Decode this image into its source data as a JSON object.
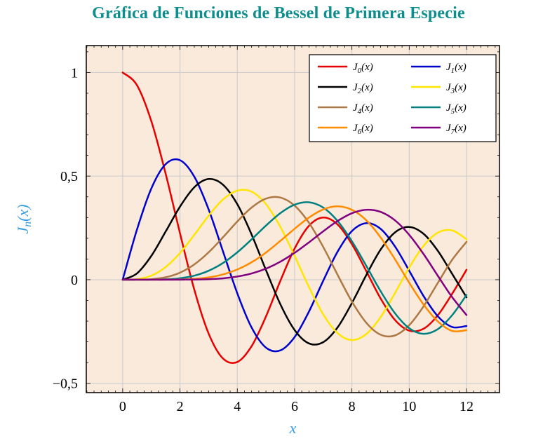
{
  "title": "Gráfica de Funciones de Bessel de Primera Especie",
  "title_color": "#0e8d8d",
  "chart_data": {
    "type": "line",
    "title": "Gráfica de Funciones de Bessel de Primera Especie",
    "xlabel": "x",
    "ylabel": "J_n(x)",
    "axis_label_color": "#3a9ede",
    "plot_bg": "#faeadc",
    "grid": true,
    "grid_color": "#c9c9c9",
    "legend_position": "top-right",
    "xlim": [
      -1.27,
      13.15
    ],
    "ylim": [
      -0.545,
      1.13
    ],
    "x_ticks": [
      {
        "v": 0,
        "label": "0"
      },
      {
        "v": 2,
        "label": "2"
      },
      {
        "v": 4,
        "label": "4"
      },
      {
        "v": 6,
        "label": "6"
      },
      {
        "v": 8,
        "label": "8"
      },
      {
        "v": 10,
        "label": "10"
      },
      {
        "v": 12,
        "label": "12"
      }
    ],
    "y_ticks": [
      {
        "v": 1,
        "label": "1"
      },
      {
        "v": 0.5,
        "label": "0,5"
      },
      {
        "v": 0,
        "label": "0"
      },
      {
        "v": -0.5,
        "label": "−0,5"
      }
    ],
    "x": [
      0,
      0.5,
      1,
      1.5,
      2,
      2.5,
      3,
      3.5,
      4,
      4.5,
      5,
      5.5,
      6,
      6.5,
      7,
      7.5,
      8,
      8.5,
      9,
      9.5,
      10,
      10.5,
      11,
      11.5,
      12
    ],
    "series": [
      {
        "name": "J_0(x)",
        "color": "#e60000",
        "values": [
          1,
          0.9385,
          0.7652,
          0.5118,
          0.2239,
          -0.0484,
          -0.2601,
          -0.3801,
          -0.3971,
          -0.3205,
          -0.1776,
          -0.0068,
          0.1506,
          0.2601,
          0.3001,
          0.2663,
          0.1717,
          0.0419,
          -0.0903,
          -0.1939,
          -0.2459,
          -0.2366,
          -0.1712,
          -0.0677,
          0.0477
        ]
      },
      {
        "name": "J_1(x)",
        "color": "#0000cd",
        "values": [
          0,
          0.2423,
          0.4401,
          0.5579,
          0.5767,
          0.4971,
          0.3391,
          0.1374,
          -0.066,
          -0.2311,
          -0.3276,
          -0.3414,
          -0.2767,
          -0.1538,
          -0.0047,
          0.1352,
          0.2346,
          0.2731,
          0.2453,
          0.1613,
          0.0435,
          -0.0789,
          -0.1768,
          -0.2284,
          -0.2234
        ]
      },
      {
        "name": "J_2(x)",
        "color": "#000000",
        "values": [
          0,
          0.0306,
          0.1149,
          0.2321,
          0.3528,
          0.4461,
          0.4861,
          0.4586,
          0.3641,
          0.2178,
          0.0466,
          -0.1173,
          -0.2429,
          -0.3074,
          -0.3014,
          -0.2303,
          -0.113,
          0.0223,
          0.1448,
          0.2279,
          0.2546,
          0.2216,
          0.139,
          0.0279,
          -0.0849
        ]
      },
      {
        "name": "J_3(x)",
        "color": "#ffe600",
        "values": [
          0,
          0.0026,
          0.0196,
          0.061,
          0.1289,
          0.2166,
          0.3091,
          0.3868,
          0.4302,
          0.4247,
          0.3648,
          0.2561,
          0.1148,
          -0.0353,
          -0.1676,
          -0.2581,
          -0.2911,
          -0.2626,
          -0.1809,
          -0.0653,
          0.0584,
          0.1633,
          0.2273,
          0.2381,
          0.1951
        ]
      },
      {
        "name": "J_4(x)",
        "color": "#ad7843",
        "values": [
          0,
          0.0002,
          0.0025,
          0.0118,
          0.034,
          0.0738,
          0.132,
          0.2044,
          0.2811,
          0.3484,
          0.3912,
          0.3967,
          0.3576,
          0.2748,
          0.1578,
          0.0238,
          -0.1054,
          -0.2077,
          -0.2655,
          -0.2691,
          -0.2196,
          -0.1283,
          -0.015,
          0.0963,
          0.1825
        ]
      },
      {
        "name": "J_5(x)",
        "color": "#008080",
        "values": [
          0,
          0,
          0.0002,
          0.0018,
          0.007,
          0.0195,
          0.043,
          0.0804,
          0.1321,
          0.1947,
          0.2611,
          0.3209,
          0.3621,
          0.3736,
          0.3479,
          0.2835,
          0.1858,
          0.0671,
          -0.055,
          -0.1613,
          -0.2341,
          -0.2611,
          -0.2383,
          -0.1711,
          -0.0735
        ]
      },
      {
        "name": "J_6(x)",
        "color": "#ff8c00",
        "values": [
          0,
          0,
          2e-05,
          0.0002,
          0.0012,
          0.0042,
          0.0114,
          0.0254,
          0.0491,
          0.0843,
          0.131,
          0.1868,
          0.2458,
          0.2999,
          0.3392,
          0.3541,
          0.3376,
          0.2867,
          0.2043,
          0.0993,
          -0.0145,
          -0.1201,
          -0.2016,
          -0.2472,
          -0.2437
        ]
      },
      {
        "name": "J_7(x)",
        "color": "#800080",
        "values": [
          0,
          0,
          0,
          0,
          0.0002,
          0.0008,
          0.0025,
          0.0067,
          0.0152,
          0.03,
          0.0534,
          0.0866,
          0.1296,
          0.1801,
          0.2336,
          0.2832,
          0.3206,
          0.3376,
          0.3275,
          0.2868,
          0.2167,
          0.1236,
          0.0184,
          -0.0846,
          -0.1703
        ]
      }
    ]
  }
}
